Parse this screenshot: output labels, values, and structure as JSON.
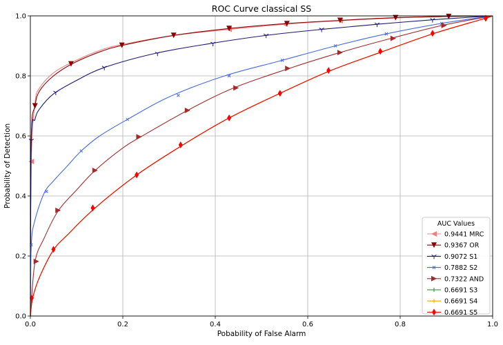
{
  "chart_data": {
    "type": "line",
    "title": "ROC Curve classical SS",
    "xlabel": "Pobability of False Alarm",
    "ylabel": "Probability of Detection",
    "xlim": [
      0,
      1
    ],
    "ylim": [
      0,
      1
    ],
    "xticks": [
      "0.0",
      "0.2",
      "0.4",
      "0.6",
      "0.8",
      "1.0"
    ],
    "yticks": [
      "0.0",
      "0.2",
      "0.4",
      "0.6",
      "0.8",
      "1.0"
    ],
    "grid": true,
    "legend": {
      "title": "AUC Values",
      "placement": "bottom-right"
    },
    "series": [
      {
        "name": "0.9441 MRC",
        "color": "#f08080",
        "marker": "triangle-left",
        "x": [
          0,
          0.002,
          0.01,
          0.02,
          0.05,
          0.09,
          0.15,
          0.2,
          0.31,
          0.43,
          0.55,
          0.67,
          0.79,
          0.9,
          1.0
        ],
        "y": [
          0,
          0.515,
          0.71,
          0.76,
          0.81,
          0.845,
          0.885,
          0.905,
          0.935,
          0.955,
          0.972,
          0.984,
          0.993,
          0.998,
          1.0
        ],
        "markers_x": [
          0.002,
          0.43,
          0.55,
          0.67
        ],
        "markers_y": [
          0.515,
          0.955,
          0.972,
          0.984
        ]
      },
      {
        "name": "0.9367 OR",
        "color": "#8b0000",
        "marker": "triangle-down",
        "x": [
          0,
          0.002,
          0.01,
          0.02,
          0.05,
          0.09,
          0.15,
          0.2,
          0.31,
          0.43,
          0.55,
          0.67,
          0.79,
          0.9,
          1.0
        ],
        "y": [
          0,
          0.59,
          0.7,
          0.75,
          0.8,
          0.84,
          0.88,
          0.902,
          0.935,
          0.958,
          0.974,
          0.985,
          0.994,
          0.998,
          1.0
        ],
        "markers_x": [
          0.01,
          0.088,
          0.198,
          0.31,
          0.43,
          0.555,
          0.67,
          0.79,
          0.905
        ],
        "markers_y": [
          0.7,
          0.84,
          0.902,
          0.935,
          0.958,
          0.974,
          0.985,
          0.994,
          0.998
        ]
      },
      {
        "name": "0.9072 S1",
        "color": "#191970",
        "marker": "tri-down",
        "x": [
          0,
          0.002,
          0.01,
          0.02,
          0.05,
          0.1,
          0.16,
          0.27,
          0.39,
          0.51,
          0.63,
          0.75,
          0.87,
          1.0
        ],
        "y": [
          0,
          0.585,
          0.655,
          0.69,
          0.74,
          0.785,
          0.828,
          0.875,
          0.908,
          0.935,
          0.955,
          0.972,
          0.987,
          1.0
        ],
        "markers_x": [
          0.002,
          0.055,
          0.16,
          0.275,
          0.395,
          0.51,
          0.63,
          0.75,
          0.87
        ],
        "markers_y": [
          0.585,
          0.745,
          0.828,
          0.875,
          0.908,
          0.935,
          0.955,
          0.972,
          0.987
        ]
      },
      {
        "name": "0.7882 S2",
        "color": "#4169e1",
        "marker": "x",
        "x": [
          0,
          0.002,
          0.01,
          0.03,
          0.05,
          0.08,
          0.11,
          0.15,
          0.21,
          0.3,
          0.42,
          0.54,
          0.66,
          0.77,
          0.89,
          1.0
        ],
        "y": [
          0,
          0.237,
          0.32,
          0.41,
          0.45,
          0.5,
          0.55,
          0.6,
          0.655,
          0.73,
          0.8,
          0.85,
          0.9,
          0.94,
          0.975,
          1.0
        ],
        "markers_x": [
          0.002,
          0.035,
          0.11,
          0.21,
          0.32,
          0.43,
          0.545,
          0.66,
          0.77,
          0.89
        ],
        "markers_y": [
          0.237,
          0.415,
          0.55,
          0.655,
          0.735,
          0.8,
          0.852,
          0.9,
          0.94,
          0.975
        ]
      },
      {
        "name": "0.7322 AND",
        "color": "#a52a2a",
        "marker": "triangle-right",
        "x": [
          0,
          0.01,
          0.03,
          0.06,
          0.1,
          0.14,
          0.2,
          0.24,
          0.34,
          0.44,
          0.56,
          0.67,
          0.78,
          0.89,
          1.0
        ],
        "y": [
          0,
          0.18,
          0.26,
          0.35,
          0.42,
          0.485,
          0.56,
          0.598,
          0.685,
          0.76,
          0.825,
          0.878,
          0.925,
          0.968,
          1.0
        ],
        "markers_x": [
          0.013,
          0.06,
          0.14,
          0.235,
          0.34,
          0.445,
          0.557,
          0.67,
          0.785,
          0.895
        ],
        "markers_y": [
          0.182,
          0.352,
          0.485,
          0.597,
          0.685,
          0.76,
          0.825,
          0.878,
          0.925,
          0.968
        ]
      },
      {
        "name": "0.6691 S3",
        "color": "#228b22",
        "marker": "plus",
        "x": [
          0,
          0.005,
          0.02,
          0.05,
          0.08,
          0.14,
          0.23,
          0.33,
          0.43,
          0.54,
          0.65,
          0.76,
          0.87,
          0.98,
          1.0
        ],
        "y": [
          0,
          0.06,
          0.13,
          0.22,
          0.27,
          0.36,
          0.47,
          0.57,
          0.66,
          0.742,
          0.818,
          0.88,
          0.94,
          0.99,
          1.0
        ],
        "markers_x": [],
        "markers_y": []
      },
      {
        "name": "0.6691 S4",
        "color": "#ffa500",
        "marker": "plus",
        "x": [
          0,
          0.005,
          0.02,
          0.05,
          0.08,
          0.14,
          0.23,
          0.33,
          0.43,
          0.54,
          0.65,
          0.76,
          0.87,
          0.98,
          1.0
        ],
        "y": [
          0,
          0.06,
          0.13,
          0.22,
          0.27,
          0.36,
          0.47,
          0.57,
          0.66,
          0.742,
          0.818,
          0.88,
          0.94,
          0.99,
          1.0
        ],
        "markers_x": [],
        "markers_y": []
      },
      {
        "name": "0.6691 S5",
        "color": "#ff0000",
        "marker": "thin-diamond",
        "x": [
          0,
          0.005,
          0.02,
          0.05,
          0.08,
          0.14,
          0.23,
          0.33,
          0.43,
          0.54,
          0.65,
          0.76,
          0.87,
          0.98,
          1.0
        ],
        "y": [
          0,
          0.06,
          0.13,
          0.22,
          0.27,
          0.36,
          0.47,
          0.57,
          0.66,
          0.742,
          0.818,
          0.88,
          0.94,
          0.99,
          1.0
        ],
        "markers_x": [
          0.003,
          0.05,
          0.135,
          0.23,
          0.325,
          0.43,
          0.54,
          0.645,
          0.757,
          0.87,
          0.985
        ],
        "markers_y": [
          0.06,
          0.222,
          0.36,
          0.47,
          0.57,
          0.66,
          0.742,
          0.818,
          0.882,
          0.942,
          0.992
        ]
      }
    ]
  }
}
